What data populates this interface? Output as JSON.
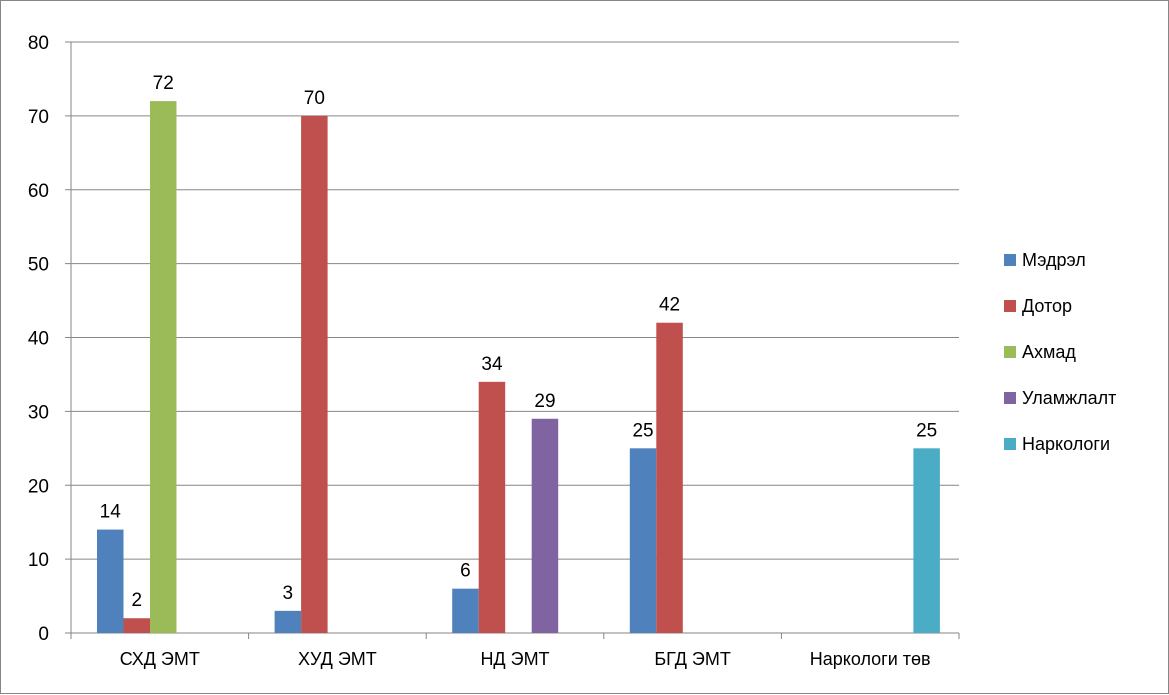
{
  "chart_data": {
    "type": "bar",
    "categories": [
      "СХД ЭМТ",
      "ХУД ЭМТ",
      "НД ЭМТ",
      "БГД ЭМТ",
      "Наркологи төв"
    ],
    "series": [
      {
        "name": "Мэдрэл",
        "color": "#4F81BD",
        "values": [
          14,
          3,
          6,
          25,
          null
        ]
      },
      {
        "name": "Дотор",
        "color": "#C0504D",
        "values": [
          2,
          70,
          34,
          42,
          null
        ]
      },
      {
        "name": "Ахмад",
        "color": "#9BBB59",
        "values": [
          72,
          null,
          null,
          null,
          null
        ]
      },
      {
        "name": "Уламжлалт",
        "color": "#8064A2",
        "values": [
          null,
          null,
          29,
          null,
          null
        ]
      },
      {
        "name": "Наркологи",
        "color": "#4BACC6",
        "values": [
          null,
          null,
          null,
          null,
          25
        ]
      }
    ],
    "yticks": [
      "0",
      "10",
      "20",
      "30",
      "40",
      "50",
      "60",
      "70",
      "80"
    ],
    "ylim": [
      0,
      80
    ],
    "grid": true,
    "legend": "right"
  }
}
